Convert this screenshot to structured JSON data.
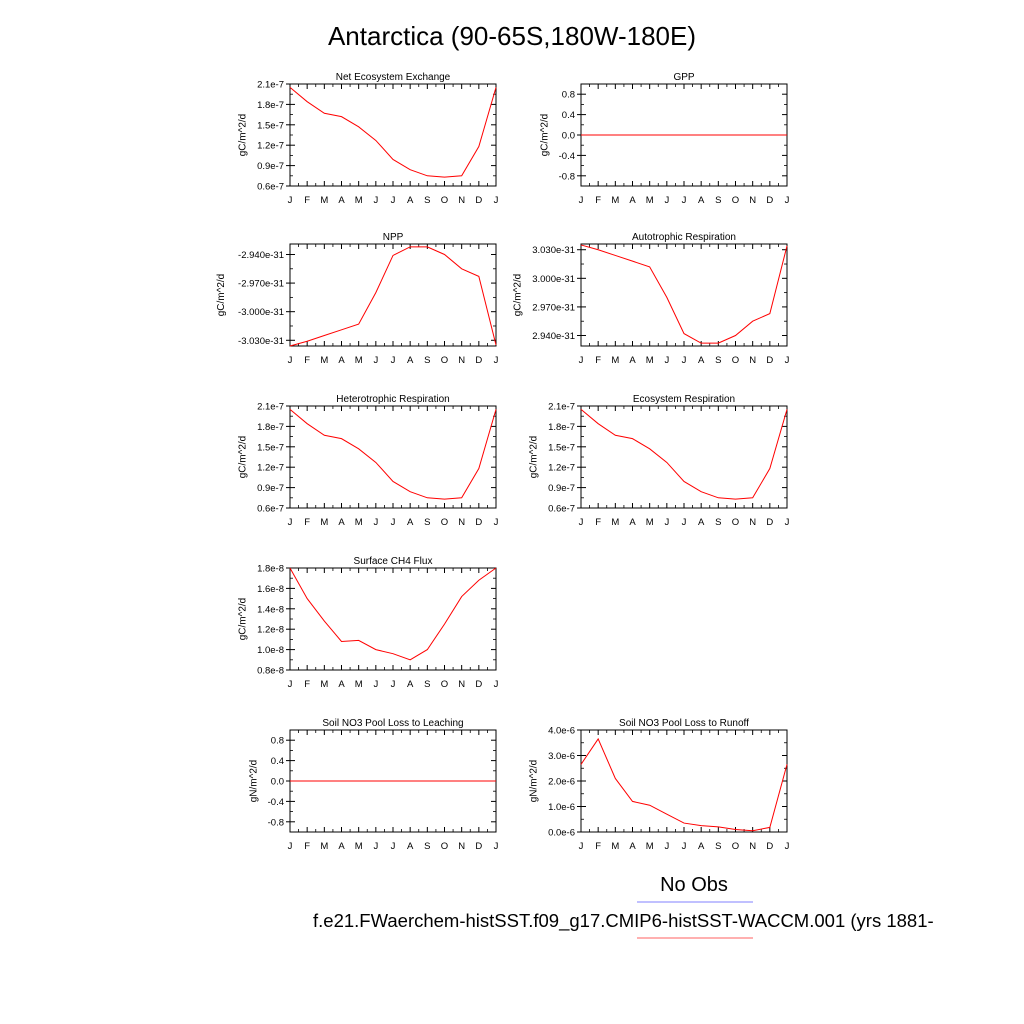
{
  "title": "Antarctica (90-65S,180W-180E)",
  "legend": {
    "obs_label": "No Obs",
    "obs_color": "#8080ff",
    "case_label": "f.e21.FWaerchem-histSST.f09_g17.CMIP6-histSST-WACCM.001 (yrs 1881-",
    "case_color": "#ff6060"
  },
  "colors": {
    "series": "#ff0000",
    "axis": "#000000"
  },
  "months": [
    "J",
    "F",
    "M",
    "A",
    "M",
    "J",
    "J",
    "A",
    "S",
    "O",
    "N",
    "D",
    "J"
  ],
  "chart_data": [
    {
      "type": "line",
      "title": "Net Ecosystem Exchange",
      "ylabel": "gC/m^2/d",
      "ylim": [
        6e-08,
        2.1e-07
      ],
      "yticks": [
        6e-08,
        9e-08,
        1.2e-07,
        1.5e-07,
        1.8e-07,
        2.1e-07
      ],
      "yticklabels": [
        "0.6e-7",
        "0.9e-7",
        "1.2e-7",
        "1.5e-7",
        "1.8e-7",
        "2.1e-7"
      ],
      "series": [
        {
          "values": [
            2.05e-07,
            1.84e-07,
            1.67e-07,
            1.62e-07,
            1.47e-07,
            1.27e-07,
            9.9e-08,
            8.4e-08,
            7.5e-08,
            7.3e-08,
            7.5e-08,
            1.18e-07,
            2.05e-07
          ]
        }
      ]
    },
    {
      "type": "line",
      "title": "GPP",
      "ylabel": "gC/m^2/d",
      "ylim": [
        -1.0,
        1.0
      ],
      "yticks": [
        -0.8,
        -0.4,
        0.0,
        0.4,
        0.8
      ],
      "yticklabels": [
        "-0.8",
        "-0.4",
        "0.0",
        "0.4",
        "0.8"
      ],
      "series": [
        {
          "values": [
            0,
            0,
            0,
            0,
            0,
            0,
            0,
            0,
            0,
            0,
            0,
            0,
            0
          ]
        }
      ]
    },
    {
      "type": "line",
      "title": "NPP",
      "ylabel": "gC/m^2/d",
      "ylim": [
        -3.036e-31,
        -2.929e-31
      ],
      "yticks": [
        -3.03e-31,
        -3e-31,
        -2.97e-31,
        -2.94e-31
      ],
      "yticklabels": [
        "-3.030e-31",
        "-3.000e-31",
        "-2.970e-31",
        "-2.940e-31"
      ],
      "series": [
        {
          "values": [
            -3.036e-31,
            -3.031e-31,
            -3.025e-31,
            -3.019e-31,
            -3.013e-31,
            -2.98e-31,
            -2.941e-31,
            -2.932e-31,
            -2.932e-31,
            -2.94e-31,
            -2.955e-31,
            -2.963e-31,
            -3.035e-31
          ]
        }
      ]
    },
    {
      "type": "line",
      "title": "Autotrophic Respiration",
      "ylabel": "gC/m^2/d",
      "ylim": [
        2.929e-31,
        3.036e-31
      ],
      "yticks": [
        2.94e-31,
        2.97e-31,
        3e-31,
        3.03e-31
      ],
      "yticklabels": [
        "2.940e-31",
        "2.970e-31",
        "3.000e-31",
        "3.030e-31"
      ],
      "series": [
        {
          "values": [
            3.035e-31,
            3.03e-31,
            3.024e-31,
            3.018e-31,
            3.012e-31,
            2.98e-31,
            2.942e-31,
            2.932e-31,
            2.932e-31,
            2.94e-31,
            2.955e-31,
            2.963e-31,
            3.034e-31
          ]
        }
      ]
    },
    {
      "type": "line",
      "title": "Heterotrophic Respiration",
      "ylabel": "gC/m^2/d",
      "ylim": [
        6e-08,
        2.1e-07
      ],
      "yticks": [
        6e-08,
        9e-08,
        1.2e-07,
        1.5e-07,
        1.8e-07,
        2.1e-07
      ],
      "yticklabels": [
        "0.6e-7",
        "0.9e-7",
        "1.2e-7",
        "1.5e-7",
        "1.8e-7",
        "2.1e-7"
      ],
      "series": [
        {
          "values": [
            2.05e-07,
            1.84e-07,
            1.67e-07,
            1.62e-07,
            1.47e-07,
            1.27e-07,
            9.9e-08,
            8.4e-08,
            7.5e-08,
            7.3e-08,
            7.5e-08,
            1.18e-07,
            2.05e-07
          ]
        }
      ]
    },
    {
      "type": "line",
      "title": "Ecosystem Respiration",
      "ylabel": "gC/m^2/d",
      "ylim": [
        6e-08,
        2.1e-07
      ],
      "yticks": [
        6e-08,
        9e-08,
        1.2e-07,
        1.5e-07,
        1.8e-07,
        2.1e-07
      ],
      "yticklabels": [
        "0.6e-7",
        "0.9e-7",
        "1.2e-7",
        "1.5e-7",
        "1.8e-7",
        "2.1e-7"
      ],
      "series": [
        {
          "values": [
            2.05e-07,
            1.84e-07,
            1.67e-07,
            1.62e-07,
            1.47e-07,
            1.27e-07,
            9.9e-08,
            8.4e-08,
            7.5e-08,
            7.3e-08,
            7.5e-08,
            1.18e-07,
            2.05e-07
          ]
        }
      ]
    },
    {
      "type": "line",
      "title": "Surface CH4 Flux",
      "ylabel": "gC/m^2/d",
      "ylim": [
        8e-09,
        1.8e-08
      ],
      "yticks": [
        8e-09,
        1e-08,
        1.2e-08,
        1.4e-08,
        1.6e-08,
        1.8e-08
      ],
      "yticklabels": [
        "0.8e-8",
        "1.0e-8",
        "1.2e-8",
        "1.4e-8",
        "1.6e-8",
        "1.8e-8"
      ],
      "series": [
        {
          "values": [
            1.8e-08,
            1.5e-08,
            1.28e-08,
            1.08e-08,
            1.09e-08,
            1e-08,
            9.6e-09,
            9e-09,
            1e-08,
            1.25e-08,
            1.52e-08,
            1.68e-08,
            1.8e-08
          ]
        }
      ]
    },
    null,
    {
      "type": "line",
      "title": "Soil NO3 Pool Loss to Leaching",
      "ylabel": "gN/m^2/d",
      "ylim": [
        -1.0,
        1.0
      ],
      "yticks": [
        -0.8,
        -0.4,
        0.0,
        0.4,
        0.8
      ],
      "yticklabels": [
        "-0.8",
        "-0.4",
        "0.0",
        "0.4",
        "0.8"
      ],
      "series": [
        {
          "values": [
            0,
            0,
            0,
            0,
            0,
            0,
            0,
            0,
            0,
            0,
            0,
            0,
            0
          ]
        }
      ]
    },
    {
      "type": "line",
      "title": "Soil NO3 Pool Loss to Runoff",
      "ylabel": "gN/m^2/d",
      "ylim": [
        0,
        4e-06
      ],
      "yticks": [
        0,
        1e-06,
        2e-06,
        3e-06,
        4e-06
      ],
      "yticklabels": [
        "0.0e-6",
        "1.0e-6",
        "2.0e-6",
        "3.0e-6",
        "4.0e-6"
      ],
      "series": [
        {
          "values": [
            2.65e-06,
            3.65e-06,
            2.1e-06,
            1.2e-06,
            1.05e-06,
            7e-07,
            3.5e-07,
            2.5e-07,
            2e-07,
            1e-07,
            5e-08,
            1.8e-07,
            2.65e-06
          ]
        }
      ]
    }
  ]
}
